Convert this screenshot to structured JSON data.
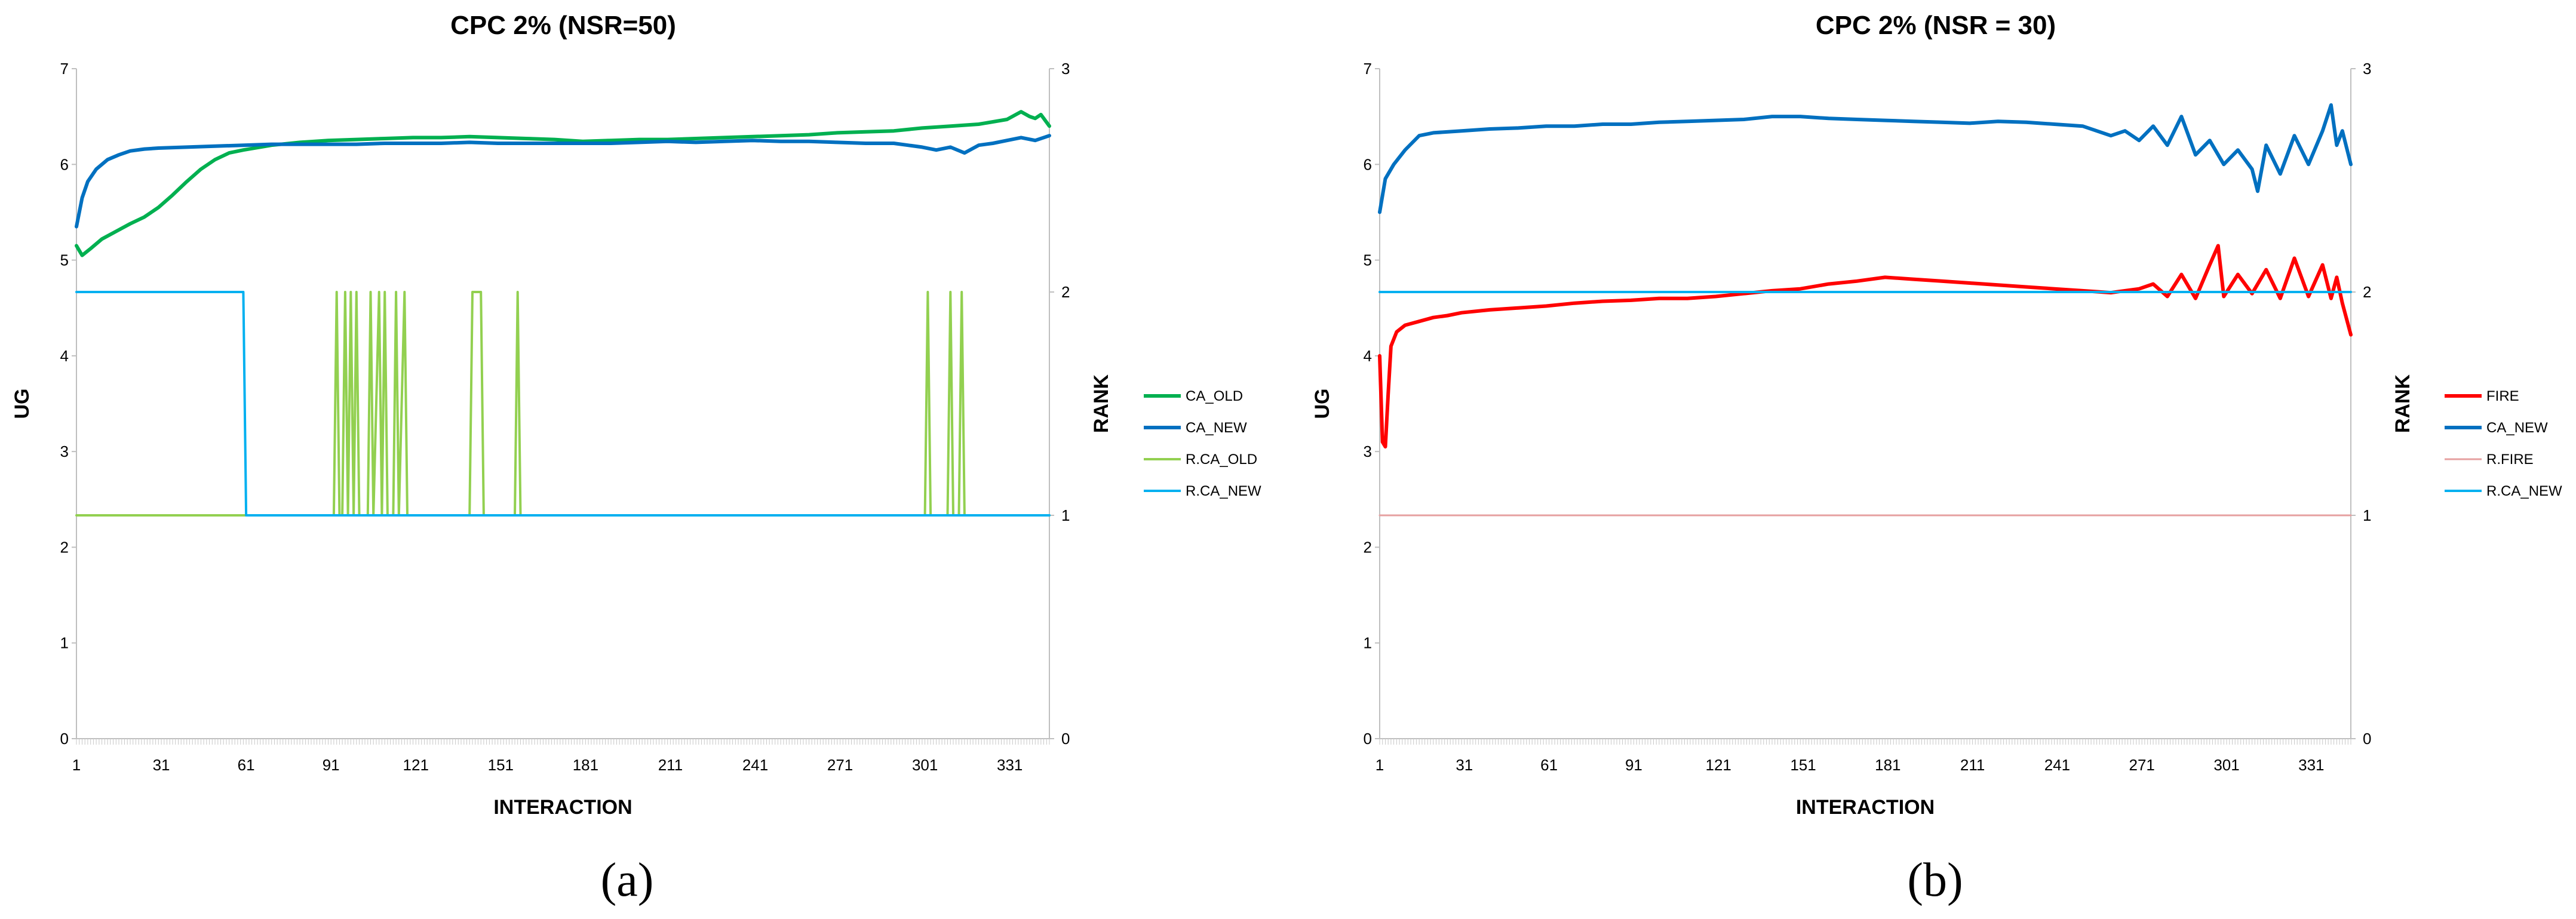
{
  "chart_data": [
    {
      "type": "line",
      "panel": "a",
      "title": "CPC 2% (NSR=50)",
      "xlabel": "INTERACTION",
      "ylabel": "UG",
      "y2label": "RANK",
      "caption": "(a)",
      "xlim": [
        1,
        345
      ],
      "ylim": [
        0,
        7
      ],
      "y2lim": [
        0,
        3
      ],
      "x_ticks": [
        "1",
        "31",
        "61",
        "91",
        "121",
        "151",
        "181",
        "211",
        "241",
        "271",
        "301",
        "331"
      ],
      "y_ticks": [
        "0",
        "1",
        "2",
        "3",
        "4",
        "5",
        "6",
        "7"
      ],
      "y2_ticks": [
        "0",
        "1",
        "2",
        "3"
      ],
      "legend_position": "right",
      "series": [
        {
          "name": "CA_OLD",
          "axis": "left",
          "color": "#00b050",
          "width": 6,
          "points": [
            [
              1,
              5.15
            ],
            [
              3,
              5.05
            ],
            [
              6,
              5.12
            ],
            [
              10,
              5.22
            ],
            [
              15,
              5.3
            ],
            [
              20,
              5.38
            ],
            [
              25,
              5.45
            ],
            [
              30,
              5.55
            ],
            [
              35,
              5.68
            ],
            [
              40,
              5.82
            ],
            [
              45,
              5.95
            ],
            [
              50,
              6.05
            ],
            [
              55,
              6.12
            ],
            [
              60,
              6.15
            ],
            [
              70,
              6.2
            ],
            [
              80,
              6.23
            ],
            [
              90,
              6.25
            ],
            [
              100,
              6.26
            ],
            [
              110,
              6.27
            ],
            [
              120,
              6.28
            ],
            [
              130,
              6.28
            ],
            [
              140,
              6.29
            ],
            [
              150,
              6.28
            ],
            [
              160,
              6.27
            ],
            [
              170,
              6.26
            ],
            [
              180,
              6.24
            ],
            [
              190,
              6.25
            ],
            [
              200,
              6.26
            ],
            [
              210,
              6.26
            ],
            [
              220,
              6.27
            ],
            [
              230,
              6.28
            ],
            [
              240,
              6.29
            ],
            [
              250,
              6.3
            ],
            [
              260,
              6.31
            ],
            [
              270,
              6.33
            ],
            [
              280,
              6.34
            ],
            [
              290,
              6.35
            ],
            [
              300,
              6.38
            ],
            [
              310,
              6.4
            ],
            [
              320,
              6.42
            ],
            [
              330,
              6.47
            ],
            [
              335,
              6.55
            ],
            [
              338,
              6.5
            ],
            [
              340,
              6.48
            ],
            [
              342,
              6.52
            ],
            [
              345,
              6.4
            ]
          ]
        },
        {
          "name": "CA_NEW",
          "axis": "left",
          "color": "#0070c0",
          "width": 6,
          "points": [
            [
              1,
              5.35
            ],
            [
              3,
              5.65
            ],
            [
              5,
              5.82
            ],
            [
              8,
              5.95
            ],
            [
              12,
              6.05
            ],
            [
              16,
              6.1
            ],
            [
              20,
              6.14
            ],
            [
              25,
              6.16
            ],
            [
              30,
              6.17
            ],
            [
              40,
              6.18
            ],
            [
              50,
              6.19
            ],
            [
              60,
              6.2
            ],
            [
              70,
              6.21
            ],
            [
              80,
              6.21
            ],
            [
              90,
              6.21
            ],
            [
              100,
              6.21
            ],
            [
              110,
              6.22
            ],
            [
              120,
              6.22
            ],
            [
              130,
              6.22
            ],
            [
              140,
              6.23
            ],
            [
              150,
              6.22
            ],
            [
              160,
              6.22
            ],
            [
              170,
              6.22
            ],
            [
              180,
              6.22
            ],
            [
              190,
              6.22
            ],
            [
              200,
              6.23
            ],
            [
              210,
              6.24
            ],
            [
              220,
              6.23
            ],
            [
              230,
              6.24
            ],
            [
              240,
              6.25
            ],
            [
              250,
              6.24
            ],
            [
              260,
              6.24
            ],
            [
              270,
              6.23
            ],
            [
              280,
              6.22
            ],
            [
              290,
              6.22
            ],
            [
              295,
              6.2
            ],
            [
              300,
              6.18
            ],
            [
              305,
              6.15
            ],
            [
              310,
              6.18
            ],
            [
              315,
              6.12
            ],
            [
              320,
              6.2
            ],
            [
              325,
              6.22
            ],
            [
              330,
              6.25
            ],
            [
              335,
              6.28
            ],
            [
              340,
              6.25
            ],
            [
              345,
              6.3
            ]
          ]
        },
        {
          "name": "R.CA_OLD",
          "axis": "right",
          "color": "#92d050",
          "width": 4,
          "points": [
            [
              1,
              1
            ],
            [
              92,
              1
            ],
            [
              93,
              2
            ],
            [
              94,
              1
            ],
            [
              95,
              1
            ],
            [
              96,
              2
            ],
            [
              97,
              1
            ],
            [
              98,
              2
            ],
            [
              99,
              1
            ],
            [
              100,
              2
            ],
            [
              101,
              1
            ],
            [
              104,
              1
            ],
            [
              105,
              2
            ],
            [
              106,
              1
            ],
            [
              108,
              2
            ],
            [
              109,
              1
            ],
            [
              110,
              2
            ],
            [
              111,
              1
            ],
            [
              113,
              1
            ],
            [
              114,
              2
            ],
            [
              115,
              1
            ],
            [
              117,
              2
            ],
            [
              118,
              1
            ],
            [
              140,
              1
            ],
            [
              141,
              2
            ],
            [
              144,
              2
            ],
            [
              145,
              1
            ],
            [
              156,
              1
            ],
            [
              157,
              2
            ],
            [
              158,
              1
            ],
            [
              301,
              1
            ],
            [
              302,
              2
            ],
            [
              303,
              1
            ],
            [
              309,
              1
            ],
            [
              310,
              2
            ],
            [
              311,
              1
            ],
            [
              313,
              1
            ],
            [
              314,
              2
            ],
            [
              315,
              1
            ],
            [
              345,
              1
            ]
          ]
        },
        {
          "name": "R.CA_NEW",
          "axis": "right",
          "color": "#00b0f0",
          "width": 4,
          "points": [
            [
              1,
              2
            ],
            [
              60,
              2
            ],
            [
              61,
              1
            ],
            [
              345,
              1
            ]
          ]
        }
      ]
    },
    {
      "type": "line",
      "panel": "b",
      "title": "CPC 2% (NSR = 30)",
      "xlabel": "INTERACTION",
      "ylabel": "UG",
      "y2label": "RANK",
      "caption": "(b)",
      "xlim": [
        1,
        345
      ],
      "ylim": [
        0,
        7
      ],
      "y2lim": [
        0,
        3
      ],
      "x_ticks": [
        "1",
        "31",
        "61",
        "91",
        "121",
        "151",
        "181",
        "211",
        "241",
        "271",
        "301",
        "331"
      ],
      "y_ticks": [
        "0",
        "1",
        "2",
        "3",
        "4",
        "5",
        "6",
        "7"
      ],
      "y2_ticks": [
        "0",
        "1",
        "2",
        "3"
      ],
      "legend_position": "right",
      "series": [
        {
          "name": "FIRE",
          "axis": "left",
          "color": "#ff0000",
          "width": 6,
          "points": [
            [
              1,
              4.0
            ],
            [
              2,
              3.1
            ],
            [
              3,
              3.05
            ],
            [
              4,
              3.6
            ],
            [
              5,
              4.1
            ],
            [
              7,
              4.25
            ],
            [
              10,
              4.32
            ],
            [
              15,
              4.36
            ],
            [
              20,
              4.4
            ],
            [
              25,
              4.42
            ],
            [
              30,
              4.45
            ],
            [
              40,
              4.48
            ],
            [
              50,
              4.5
            ],
            [
              60,
              4.52
            ],
            [
              70,
              4.55
            ],
            [
              80,
              4.57
            ],
            [
              90,
              4.58
            ],
            [
              100,
              4.6
            ],
            [
              110,
              4.6
            ],
            [
              120,
              4.62
            ],
            [
              130,
              4.65
            ],
            [
              140,
              4.68
            ],
            [
              150,
              4.7
            ],
            [
              160,
              4.75
            ],
            [
              170,
              4.78
            ],
            [
              180,
              4.82
            ],
            [
              190,
              4.8
            ],
            [
              200,
              4.78
            ],
            [
              210,
              4.76
            ],
            [
              220,
              4.74
            ],
            [
              230,
              4.72
            ],
            [
              240,
              4.7
            ],
            [
              250,
              4.68
            ],
            [
              260,
              4.66
            ],
            [
              270,
              4.7
            ],
            [
              275,
              4.75
            ],
            [
              280,
              4.62
            ],
            [
              285,
              4.85
            ],
            [
              290,
              4.6
            ],
            [
              295,
              4.95
            ],
            [
              298,
              5.15
            ],
            [
              300,
              4.62
            ],
            [
              305,
              4.85
            ],
            [
              310,
              4.65
            ],
            [
              315,
              4.9
            ],
            [
              320,
              4.6
            ],
            [
              325,
              5.02
            ],
            [
              330,
              4.62
            ],
            [
              335,
              4.95
            ],
            [
              338,
              4.6
            ],
            [
              340,
              4.82
            ],
            [
              342,
              4.55
            ],
            [
              345,
              4.22
            ]
          ]
        },
        {
          "name": "CA_NEW",
          "axis": "left",
          "color": "#0070c0",
          "width": 6,
          "points": [
            [
              1,
              5.5
            ],
            [
              3,
              5.85
            ],
            [
              6,
              6.0
            ],
            [
              10,
              6.15
            ],
            [
              15,
              6.3
            ],
            [
              20,
              6.33
            ],
            [
              30,
              6.35
            ],
            [
              40,
              6.37
            ],
            [
              50,
              6.38
            ],
            [
              60,
              6.4
            ],
            [
              70,
              6.4
            ],
            [
              80,
              6.42
            ],
            [
              90,
              6.42
            ],
            [
              100,
              6.44
            ],
            [
              110,
              6.45
            ],
            [
              120,
              6.46
            ],
            [
              130,
              6.47
            ],
            [
              140,
              6.5
            ],
            [
              150,
              6.5
            ],
            [
              160,
              6.48
            ],
            [
              170,
              6.47
            ],
            [
              180,
              6.46
            ],
            [
              190,
              6.45
            ],
            [
              200,
              6.44
            ],
            [
              210,
              6.43
            ],
            [
              220,
              6.45
            ],
            [
              230,
              6.44
            ],
            [
              240,
              6.42
            ],
            [
              250,
              6.4
            ],
            [
              255,
              6.35
            ],
            [
              260,
              6.3
            ],
            [
              265,
              6.35
            ],
            [
              270,
              6.25
            ],
            [
              275,
              6.4
            ],
            [
              280,
              6.2
            ],
            [
              285,
              6.5
            ],
            [
              290,
              6.1
            ],
            [
              295,
              6.25
            ],
            [
              300,
              6.0
            ],
            [
              305,
              6.15
            ],
            [
              310,
              5.95
            ],
            [
              312,
              5.72
            ],
            [
              315,
              6.2
            ],
            [
              320,
              5.9
            ],
            [
              325,
              6.3
            ],
            [
              330,
              6.0
            ],
            [
              335,
              6.35
            ],
            [
              338,
              6.62
            ],
            [
              340,
              6.2
            ],
            [
              342,
              6.35
            ],
            [
              345,
              6.0
            ]
          ]
        },
        {
          "name": "R.FIRE",
          "axis": "right",
          "color": "#e6a0a0",
          "width": 3,
          "points": [
            [
              1,
              1
            ],
            [
              345,
              1
            ]
          ]
        },
        {
          "name": "R.CA_NEW",
          "axis": "right",
          "color": "#00b0f0",
          "width": 4,
          "points": [
            [
              1,
              2
            ],
            [
              345,
              2
            ]
          ]
        }
      ]
    }
  ]
}
